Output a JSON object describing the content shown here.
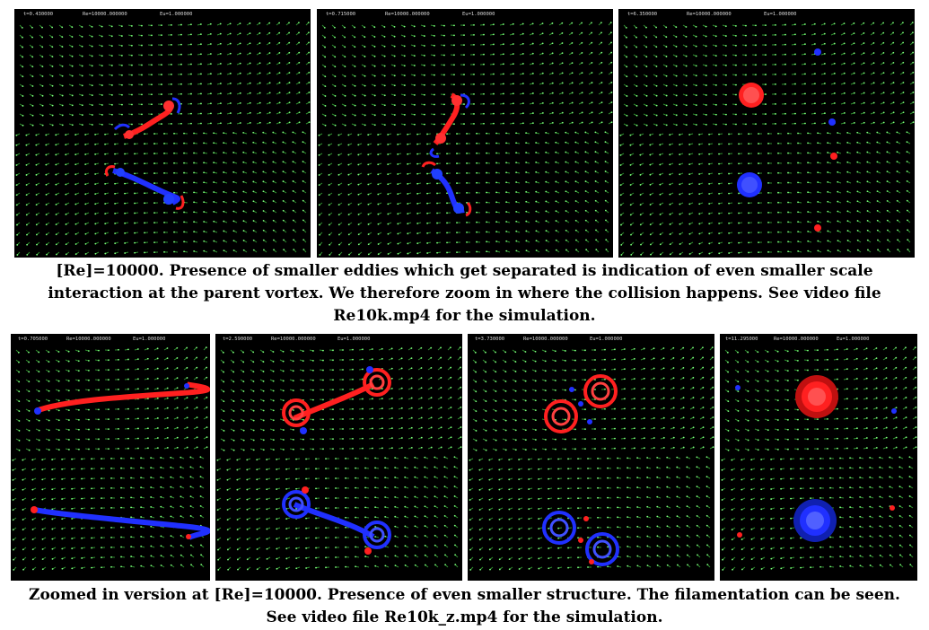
{
  "figure_top": {
    "panels": [
      {
        "t": "t=0.430000",
        "re": "Re=10000.000000",
        "eu": "Eu=1.000000"
      },
      {
        "t": "t=0.715000",
        "re": "Re=10000.000000",
        "eu": "Eu=1.000000"
      },
      {
        "t": "t=6.350000",
        "re": "Re=10000.000000",
        "eu": "Eu=1.000000"
      }
    ],
    "caption_lines": [
      "[Re]=10000. Presence of smaller eddies which get separated is indication of even smaller scale",
      "interaction at the parent vortex. We therefore zoom in where the collision happens. See video file",
      "Re10k.mp4 for the simulation."
    ]
  },
  "figure_bottom": {
    "panels": [
      {
        "t": "t=0.705000",
        "re": "Re=10000.000000",
        "eu": "Eu=1.000000"
      },
      {
        "t": "t=2.590000",
        "re": "Re=10000.000000",
        "eu": "Eu=1.000000"
      },
      {
        "t": "t=3.730000",
        "re": "Re=10000.000000",
        "eu": "Eu=1.000000"
      },
      {
        "t": "t=11.295000",
        "re": "Re=10000.000000",
        "eu": "Eu=1.000000"
      }
    ],
    "caption_lines": [
      "Zoomed in version at [Re]=10000. Presence of even smaller structure. The filamentation can be seen.",
      "See video file Re10k_z.mp4 for the simulation."
    ]
  },
  "colors": {
    "positive_vorticity": "#ff2020",
    "negative_vorticity": "#2030ff",
    "velocity_arrows": "#3fbf3f",
    "background": "#000000"
  }
}
